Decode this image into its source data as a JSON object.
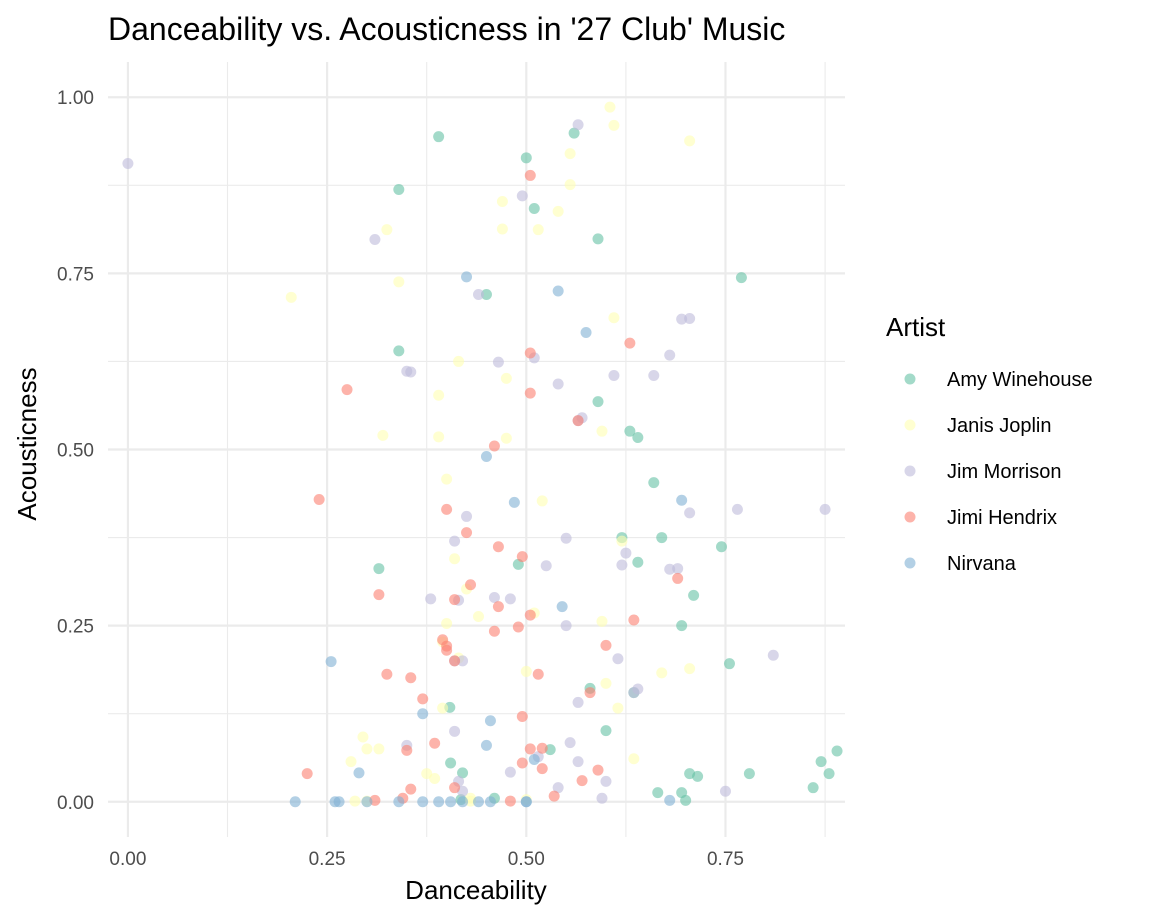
{
  "chart_data": {
    "type": "scatter",
    "title": "Danceability vs. Acousticness in '27 Club' Music",
    "xlabel": "Danceability",
    "ylabel": "Acousticness",
    "xlim": [
      -0.025,
      0.9
    ],
    "ylim": [
      -0.05,
      1.05
    ],
    "x_ticks": [
      0,
      0.25,
      0.5,
      0.75
    ],
    "x_tick_labels": [
      "0.00",
      "0.25",
      "0.50",
      "0.75"
    ],
    "y_ticks": [
      0,
      0.25,
      0.5,
      0.75,
      1
    ],
    "y_tick_labels": [
      "0.00",
      "0.25",
      "0.50",
      "0.75",
      "1.00"
    ],
    "grid": true,
    "point_opacity": 0.6,
    "legend": {
      "title": "Artist",
      "position": "right"
    },
    "series": [
      {
        "name": "Amy Winehouse",
        "color": "#66c2a5",
        "points": [
          [
            0.39,
            0.944
          ],
          [
            0.5,
            0.914
          ],
          [
            0.56,
            0.949
          ],
          [
            0.34,
            0.869
          ],
          [
            0.51,
            0.842
          ],
          [
            0.59,
            0.799
          ],
          [
            0.77,
            0.744
          ],
          [
            0.45,
            0.72
          ],
          [
            0.34,
            0.64
          ],
          [
            0.59,
            0.568
          ],
          [
            0.63,
            0.526
          ],
          [
            0.64,
            0.517
          ],
          [
            0.66,
            0.453
          ],
          [
            0.745,
            0.362
          ],
          [
            0.62,
            0.375
          ],
          [
            0.67,
            0.375
          ],
          [
            0.64,
            0.34
          ],
          [
            0.49,
            0.337
          ],
          [
            0.315,
            0.331
          ],
          [
            0.71,
            0.293
          ],
          [
            0.695,
            0.25
          ],
          [
            0.755,
            0.196
          ],
          [
            0.635,
            0.155
          ],
          [
            0.58,
            0.161
          ],
          [
            0.6,
            0.101
          ],
          [
            0.404,
            0.134
          ],
          [
            0.53,
            0.074
          ],
          [
            0.42,
            0.041
          ],
          [
            0.87,
            0.057
          ],
          [
            0.89,
            0.072
          ],
          [
            0.705,
            0.04
          ],
          [
            0.715,
            0.036
          ],
          [
            0.78,
            0.04
          ],
          [
            0.88,
            0.04
          ],
          [
            0.665,
            0.013
          ],
          [
            0.695,
            0.013
          ],
          [
            0.86,
            0.02
          ],
          [
            0.7,
            0.002
          ],
          [
            0.405,
            0.055
          ],
          [
            0.418,
            0.003
          ],
          [
            0.46,
            0.005
          ]
        ]
      },
      {
        "name": "Janis Joplin",
        "color": "#ffffb3",
        "points": [
          [
            0.605,
            0.986
          ],
          [
            0.61,
            0.96
          ],
          [
            0.705,
            0.938
          ],
          [
            0.555,
            0.92
          ],
          [
            0.555,
            0.876
          ],
          [
            0.47,
            0.852
          ],
          [
            0.54,
            0.838
          ],
          [
            0.325,
            0.812
          ],
          [
            0.47,
            0.813
          ],
          [
            0.515,
            0.812
          ],
          [
            0.34,
            0.738
          ],
          [
            0.205,
            0.716
          ],
          [
            0.61,
            0.687
          ],
          [
            0.415,
            0.625
          ],
          [
            0.475,
            0.601
          ],
          [
            0.39,
            0.577
          ],
          [
            0.32,
            0.52
          ],
          [
            0.39,
            0.518
          ],
          [
            0.475,
            0.516
          ],
          [
            0.595,
            0.526
          ],
          [
            0.4,
            0.458
          ],
          [
            0.52,
            0.427
          ],
          [
            0.41,
            0.345
          ],
          [
            0.425,
            0.302
          ],
          [
            0.62,
            0.37
          ],
          [
            0.4,
            0.253
          ],
          [
            0.44,
            0.263
          ],
          [
            0.51,
            0.268
          ],
          [
            0.595,
            0.256
          ],
          [
            0.395,
            0.227
          ],
          [
            0.415,
            0.204
          ],
          [
            0.5,
            0.185
          ],
          [
            0.67,
            0.183
          ],
          [
            0.705,
            0.189
          ],
          [
            0.6,
            0.168
          ],
          [
            0.395,
            0.133
          ],
          [
            0.615,
            0.133
          ],
          [
            0.295,
            0.092
          ],
          [
            0.3,
            0.075
          ],
          [
            0.315,
            0.075
          ],
          [
            0.28,
            0.057
          ],
          [
            0.375,
            0.04
          ],
          [
            0.385,
            0.033
          ],
          [
            0.635,
            0.061
          ],
          [
            0.5,
            0.003
          ],
          [
            0.285,
            0.001
          ],
          [
            0.3,
            0.001
          ],
          [
            0.43,
            0.001
          ],
          [
            0.43,
            0.005
          ]
        ]
      },
      {
        "name": "Jim Morrison",
        "color": "#bebada",
        "points": [
          [
            0.0,
            0.906
          ],
          [
            0.565,
            0.961
          ],
          [
            0.495,
            0.86
          ],
          [
            0.31,
            0.798
          ],
          [
            0.44,
            0.72
          ],
          [
            0.695,
            0.685
          ],
          [
            0.705,
            0.686
          ],
          [
            0.68,
            0.634
          ],
          [
            0.35,
            0.611
          ],
          [
            0.355,
            0.61
          ],
          [
            0.465,
            0.624
          ],
          [
            0.51,
            0.63
          ],
          [
            0.61,
            0.605
          ],
          [
            0.66,
            0.605
          ],
          [
            0.54,
            0.593
          ],
          [
            0.565,
            0.541
          ],
          [
            0.57,
            0.545
          ],
          [
            0.765,
            0.415
          ],
          [
            0.875,
            0.415
          ],
          [
            0.705,
            0.41
          ],
          [
            0.425,
            0.405
          ],
          [
            0.41,
            0.37
          ],
          [
            0.55,
            0.374
          ],
          [
            0.625,
            0.353
          ],
          [
            0.62,
            0.336
          ],
          [
            0.525,
            0.335
          ],
          [
            0.68,
            0.33
          ],
          [
            0.69,
            0.331
          ],
          [
            0.38,
            0.288
          ],
          [
            0.415,
            0.286
          ],
          [
            0.46,
            0.29
          ],
          [
            0.48,
            0.288
          ],
          [
            0.55,
            0.25
          ],
          [
            0.615,
            0.203
          ],
          [
            0.81,
            0.208
          ],
          [
            0.41,
            0.2
          ],
          [
            0.42,
            0.2
          ],
          [
            0.64,
            0.16
          ],
          [
            0.635,
            0.155
          ],
          [
            0.565,
            0.141
          ],
          [
            0.41,
            0.1
          ],
          [
            0.35,
            0.08
          ],
          [
            0.555,
            0.084
          ],
          [
            0.515,
            0.064
          ],
          [
            0.565,
            0.057
          ],
          [
            0.48,
            0.042
          ],
          [
            0.6,
            0.029
          ],
          [
            0.415,
            0.029
          ],
          [
            0.54,
            0.02
          ],
          [
            0.75,
            0.015
          ],
          [
            0.595,
            0.005
          ],
          [
            0.42,
            0.015
          ]
        ]
      },
      {
        "name": "Jimi Hendrix",
        "color": "#fb8072",
        "points": [
          [
            0.505,
            0.889
          ],
          [
            0.63,
            0.651
          ],
          [
            0.505,
            0.637
          ],
          [
            0.275,
            0.585
          ],
          [
            0.505,
            0.58
          ],
          [
            0.565,
            0.541
          ],
          [
            0.46,
            0.505
          ],
          [
            0.24,
            0.429
          ],
          [
            0.4,
            0.415
          ],
          [
            0.425,
            0.382
          ],
          [
            0.465,
            0.362
          ],
          [
            0.495,
            0.348
          ],
          [
            0.43,
            0.308
          ],
          [
            0.315,
            0.294
          ],
          [
            0.41,
            0.287
          ],
          [
            0.465,
            0.277
          ],
          [
            0.69,
            0.317
          ],
          [
            0.505,
            0.265
          ],
          [
            0.635,
            0.258
          ],
          [
            0.49,
            0.248
          ],
          [
            0.46,
            0.242
          ],
          [
            0.395,
            0.23
          ],
          [
            0.4,
            0.221
          ],
          [
            0.6,
            0.222
          ],
          [
            0.4,
            0.215
          ],
          [
            0.41,
            0.2
          ],
          [
            0.325,
            0.181
          ],
          [
            0.355,
            0.176
          ],
          [
            0.515,
            0.181
          ],
          [
            0.58,
            0.155
          ],
          [
            0.37,
            0.146
          ],
          [
            0.495,
            0.121
          ],
          [
            0.385,
            0.083
          ],
          [
            0.35,
            0.073
          ],
          [
            0.505,
            0.075
          ],
          [
            0.52,
            0.076
          ],
          [
            0.495,
            0.055
          ],
          [
            0.52,
            0.047
          ],
          [
            0.59,
            0.045
          ],
          [
            0.225,
            0.04
          ],
          [
            0.355,
            0.018
          ],
          [
            0.41,
            0.02
          ],
          [
            0.57,
            0.03
          ],
          [
            0.345,
            0.005
          ],
          [
            0.31,
            0.002
          ],
          [
            0.48,
            0.001
          ],
          [
            0.535,
            0.008
          ]
        ]
      },
      {
        "name": "Nirvana",
        "color": "#80b1d3",
        "points": [
          [
            0.425,
            0.745
          ],
          [
            0.54,
            0.725
          ],
          [
            0.575,
            0.666
          ],
          [
            0.45,
            0.49
          ],
          [
            0.485,
            0.425
          ],
          [
            0.695,
            0.428
          ],
          [
            0.545,
            0.277
          ],
          [
            0.255,
            0.199
          ],
          [
            0.37,
            0.125
          ],
          [
            0.455,
            0.115
          ],
          [
            0.51,
            0.06
          ],
          [
            0.45,
            0.08
          ],
          [
            0.29,
            0.041
          ],
          [
            0.21,
            0.0
          ],
          [
            0.26,
            0.0
          ],
          [
            0.265,
            0.0
          ],
          [
            0.3,
            0.0
          ],
          [
            0.34,
            0.0
          ],
          [
            0.37,
            0.0
          ],
          [
            0.39,
            0.0
          ],
          [
            0.405,
            0.0
          ],
          [
            0.42,
            0.0
          ],
          [
            0.44,
            0.0
          ],
          [
            0.455,
            0.0
          ],
          [
            0.5,
            0.0
          ],
          [
            0.5,
            0.0
          ],
          [
            0.68,
            0.002
          ]
        ]
      }
    ]
  }
}
